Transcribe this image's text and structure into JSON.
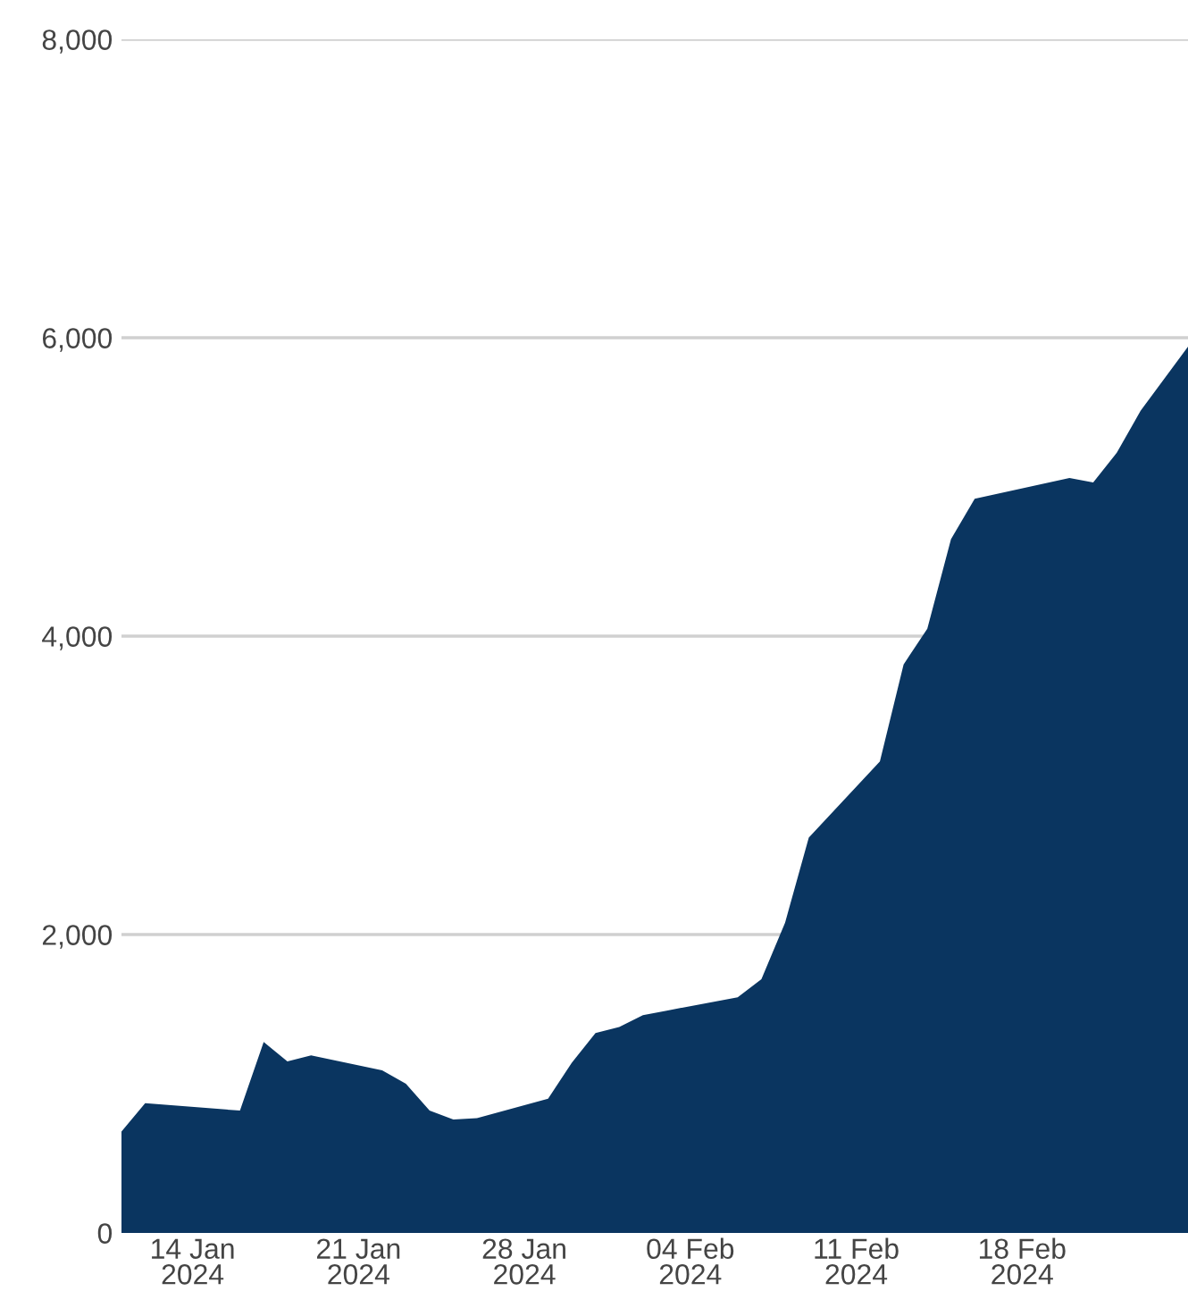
{
  "chart_data": {
    "type": "area",
    "x": [
      "2024-01-11",
      "2024-01-12",
      "2024-01-16",
      "2024-01-17",
      "2024-01-18",
      "2024-01-19",
      "2024-01-22",
      "2024-01-23",
      "2024-01-24",
      "2024-01-25",
      "2024-01-26",
      "2024-01-29",
      "2024-01-30",
      "2024-01-31",
      "2024-02-01",
      "2024-02-02",
      "2024-02-03",
      "2024-02-06",
      "2024-02-07",
      "2024-02-08",
      "2024-02-09",
      "2024-02-12",
      "2024-02-13",
      "2024-02-14",
      "2024-02-15",
      "2024-02-16",
      "2024-02-20",
      "2024-02-21",
      "2024-02-22",
      "2024-02-23",
      "2024-02-25"
    ],
    "series": [
      {
        "color": "#0a3560",
        "values": [
          680,
          870,
          820,
          1280,
          1150,
          1190,
          1090,
          1000,
          820,
          760,
          770,
          900,
          1140,
          1340,
          1380,
          1460,
          1490,
          1580,
          1700,
          2080,
          2650,
          3160,
          3810,
          4050,
          4650,
          4920,
          5060,
          5030,
          5230,
          5510,
          5940
        ]
      }
    ],
    "xlim": [
      "2024-01-11",
      "2024-02-25"
    ],
    "xticks": [
      {
        "value": "2024-01-14",
        "label": "14 Jan\n2024"
      },
      {
        "value": "2024-01-21",
        "label": "21 Jan\n2024"
      },
      {
        "value": "2024-01-28",
        "label": "28 Jan\n2024"
      },
      {
        "value": "2024-02-04",
        "label": "04 Feb\n2024"
      },
      {
        "value": "2024-02-11",
        "label": "11 Feb\n2024"
      },
      {
        "value": "2024-02-18",
        "label": "18 Feb\n2024"
      }
    ],
    "ylim": [
      0,
      8000
    ],
    "yticks": [
      {
        "value": 0,
        "label": "0"
      },
      {
        "value": 2000,
        "label": "2,000"
      },
      {
        "value": 4000,
        "label": "4,000"
      },
      {
        "value": 6000,
        "label": "6,000"
      },
      {
        "value": 8000,
        "label": "8,000"
      }
    ],
    "grid": "y"
  }
}
